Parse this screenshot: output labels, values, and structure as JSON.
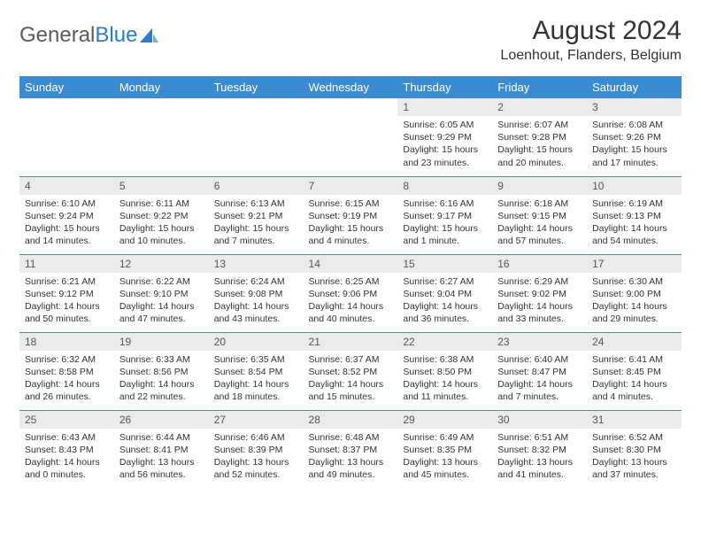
{
  "brand": {
    "part1": "General",
    "part2": "Blue"
  },
  "title": "August 2024",
  "location": "Loenhout, Flanders, Belgium",
  "colors": {
    "header_bg": "#3b8bd2",
    "header_text": "#ffffff",
    "row_divider": "#3b8bd2",
    "daynum_bg": "#ebebeb",
    "text": "#333333"
  },
  "fonts": {
    "base": "Arial",
    "title_size": 30,
    "location_size": 16,
    "dayheader_size": 13,
    "cell_size": 10.5
  },
  "day_headers": [
    "Sunday",
    "Monday",
    "Tuesday",
    "Wednesday",
    "Thursday",
    "Friday",
    "Saturday"
  ],
  "weeks": [
    [
      {
        "day": "",
        "sunrise": "",
        "sunset": "",
        "daylight": ""
      },
      {
        "day": "",
        "sunrise": "",
        "sunset": "",
        "daylight": ""
      },
      {
        "day": "",
        "sunrise": "",
        "sunset": "",
        "daylight": ""
      },
      {
        "day": "",
        "sunrise": "",
        "sunset": "",
        "daylight": ""
      },
      {
        "day": "1",
        "sunrise": "Sunrise: 6:05 AM",
        "sunset": "Sunset: 9:29 PM",
        "daylight": "Daylight: 15 hours and 23 minutes."
      },
      {
        "day": "2",
        "sunrise": "Sunrise: 6:07 AM",
        "sunset": "Sunset: 9:28 PM",
        "daylight": "Daylight: 15 hours and 20 minutes."
      },
      {
        "day": "3",
        "sunrise": "Sunrise: 6:08 AM",
        "sunset": "Sunset: 9:26 PM",
        "daylight": "Daylight: 15 hours and 17 minutes."
      }
    ],
    [
      {
        "day": "4",
        "sunrise": "Sunrise: 6:10 AM",
        "sunset": "Sunset: 9:24 PM",
        "daylight": "Daylight: 15 hours and 14 minutes."
      },
      {
        "day": "5",
        "sunrise": "Sunrise: 6:11 AM",
        "sunset": "Sunset: 9:22 PM",
        "daylight": "Daylight: 15 hours and 10 minutes."
      },
      {
        "day": "6",
        "sunrise": "Sunrise: 6:13 AM",
        "sunset": "Sunset: 9:21 PM",
        "daylight": "Daylight: 15 hours and 7 minutes."
      },
      {
        "day": "7",
        "sunrise": "Sunrise: 6:15 AM",
        "sunset": "Sunset: 9:19 PM",
        "daylight": "Daylight: 15 hours and 4 minutes."
      },
      {
        "day": "8",
        "sunrise": "Sunrise: 6:16 AM",
        "sunset": "Sunset: 9:17 PM",
        "daylight": "Daylight: 15 hours and 1 minute."
      },
      {
        "day": "9",
        "sunrise": "Sunrise: 6:18 AM",
        "sunset": "Sunset: 9:15 PM",
        "daylight": "Daylight: 14 hours and 57 minutes."
      },
      {
        "day": "10",
        "sunrise": "Sunrise: 6:19 AM",
        "sunset": "Sunset: 9:13 PM",
        "daylight": "Daylight: 14 hours and 54 minutes."
      }
    ],
    [
      {
        "day": "11",
        "sunrise": "Sunrise: 6:21 AM",
        "sunset": "Sunset: 9:12 PM",
        "daylight": "Daylight: 14 hours and 50 minutes."
      },
      {
        "day": "12",
        "sunrise": "Sunrise: 6:22 AM",
        "sunset": "Sunset: 9:10 PM",
        "daylight": "Daylight: 14 hours and 47 minutes."
      },
      {
        "day": "13",
        "sunrise": "Sunrise: 6:24 AM",
        "sunset": "Sunset: 9:08 PM",
        "daylight": "Daylight: 14 hours and 43 minutes."
      },
      {
        "day": "14",
        "sunrise": "Sunrise: 6:25 AM",
        "sunset": "Sunset: 9:06 PM",
        "daylight": "Daylight: 14 hours and 40 minutes."
      },
      {
        "day": "15",
        "sunrise": "Sunrise: 6:27 AM",
        "sunset": "Sunset: 9:04 PM",
        "daylight": "Daylight: 14 hours and 36 minutes."
      },
      {
        "day": "16",
        "sunrise": "Sunrise: 6:29 AM",
        "sunset": "Sunset: 9:02 PM",
        "daylight": "Daylight: 14 hours and 33 minutes."
      },
      {
        "day": "17",
        "sunrise": "Sunrise: 6:30 AM",
        "sunset": "Sunset: 9:00 PM",
        "daylight": "Daylight: 14 hours and 29 minutes."
      }
    ],
    [
      {
        "day": "18",
        "sunrise": "Sunrise: 6:32 AM",
        "sunset": "Sunset: 8:58 PM",
        "daylight": "Daylight: 14 hours and 26 minutes."
      },
      {
        "day": "19",
        "sunrise": "Sunrise: 6:33 AM",
        "sunset": "Sunset: 8:56 PM",
        "daylight": "Daylight: 14 hours and 22 minutes."
      },
      {
        "day": "20",
        "sunrise": "Sunrise: 6:35 AM",
        "sunset": "Sunset: 8:54 PM",
        "daylight": "Daylight: 14 hours and 18 minutes."
      },
      {
        "day": "21",
        "sunrise": "Sunrise: 6:37 AM",
        "sunset": "Sunset: 8:52 PM",
        "daylight": "Daylight: 14 hours and 15 minutes."
      },
      {
        "day": "22",
        "sunrise": "Sunrise: 6:38 AM",
        "sunset": "Sunset: 8:50 PM",
        "daylight": "Daylight: 14 hours and 11 minutes."
      },
      {
        "day": "23",
        "sunrise": "Sunrise: 6:40 AM",
        "sunset": "Sunset: 8:47 PM",
        "daylight": "Daylight: 14 hours and 7 minutes."
      },
      {
        "day": "24",
        "sunrise": "Sunrise: 6:41 AM",
        "sunset": "Sunset: 8:45 PM",
        "daylight": "Daylight: 14 hours and 4 minutes."
      }
    ],
    [
      {
        "day": "25",
        "sunrise": "Sunrise: 6:43 AM",
        "sunset": "Sunset: 8:43 PM",
        "daylight": "Daylight: 14 hours and 0 minutes."
      },
      {
        "day": "26",
        "sunrise": "Sunrise: 6:44 AM",
        "sunset": "Sunset: 8:41 PM",
        "daylight": "Daylight: 13 hours and 56 minutes."
      },
      {
        "day": "27",
        "sunrise": "Sunrise: 6:46 AM",
        "sunset": "Sunset: 8:39 PM",
        "daylight": "Daylight: 13 hours and 52 minutes."
      },
      {
        "day": "28",
        "sunrise": "Sunrise: 6:48 AM",
        "sunset": "Sunset: 8:37 PM",
        "daylight": "Daylight: 13 hours and 49 minutes."
      },
      {
        "day": "29",
        "sunrise": "Sunrise: 6:49 AM",
        "sunset": "Sunset: 8:35 PM",
        "daylight": "Daylight: 13 hours and 45 minutes."
      },
      {
        "day": "30",
        "sunrise": "Sunrise: 6:51 AM",
        "sunset": "Sunset: 8:32 PM",
        "daylight": "Daylight: 13 hours and 41 minutes."
      },
      {
        "day": "31",
        "sunrise": "Sunrise: 6:52 AM",
        "sunset": "Sunset: 8:30 PM",
        "daylight": "Daylight: 13 hours and 37 minutes."
      }
    ]
  ]
}
